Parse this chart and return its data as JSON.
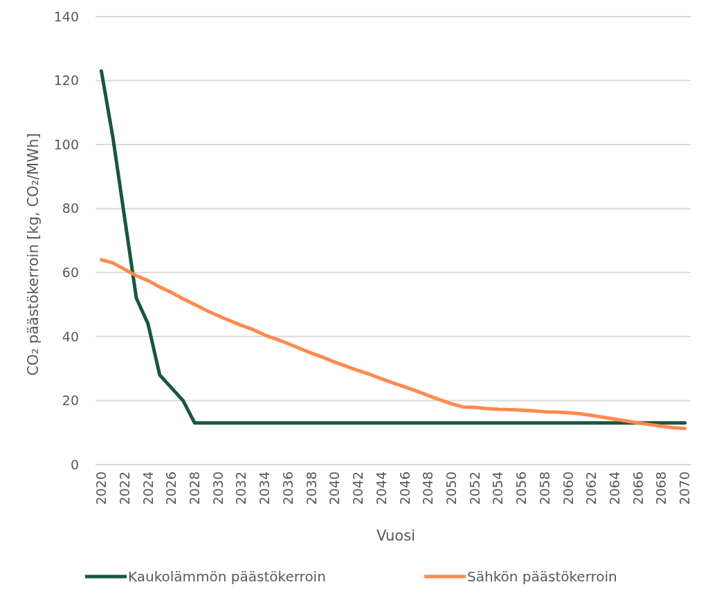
{
  "chart_data": {
    "type": "line",
    "xlabel": "Vuosi",
    "ylabel": "CO₂ päästökerroin [kg, CO₂/MWh]",
    "x": [
      2020,
      2021,
      2022,
      2023,
      2024,
      2025,
      2026,
      2027,
      2028,
      2029,
      2030,
      2031,
      2032,
      2033,
      2034,
      2035,
      2036,
      2037,
      2038,
      2039,
      2040,
      2041,
      2042,
      2043,
      2044,
      2045,
      2046,
      2047,
      2048,
      2049,
      2050,
      2051,
      2052,
      2053,
      2054,
      2055,
      2056,
      2057,
      2058,
      2059,
      2060,
      2061,
      2062,
      2063,
      2064,
      2065,
      2066,
      2067,
      2068,
      2069,
      2070
    ],
    "xlim": [
      2019.5,
      2070.5
    ],
    "xticks": [
      2020,
      2022,
      2024,
      2026,
      2028,
      2030,
      2032,
      2034,
      2036,
      2038,
      2040,
      2042,
      2044,
      2046,
      2048,
      2050,
      2052,
      2054,
      2056,
      2058,
      2060,
      2062,
      2064,
      2066,
      2068,
      2070
    ],
    "ylim": [
      0,
      140
    ],
    "yticks": [
      0,
      20,
      40,
      60,
      80,
      100,
      120,
      140
    ],
    "grid": "y",
    "legend": "bottom",
    "series": [
      {
        "name": "Kaukolämmön päästökerroin",
        "color": "#17573f",
        "values": [
          123,
          102,
          77,
          52,
          44,
          28,
          24,
          20,
          13,
          13,
          13,
          13,
          13,
          13,
          13,
          13,
          13,
          13,
          13,
          13,
          13,
          13,
          13,
          13,
          13,
          13,
          13,
          13,
          13,
          13,
          13,
          13,
          13,
          13,
          13,
          13,
          13,
          13,
          13,
          13,
          13,
          13,
          13,
          13,
          13,
          13,
          13,
          13,
          13,
          13,
          13
        ]
      },
      {
        "name": "Sähkön päästökerroin",
        "color": "#ff8a4f",
        "values": [
          64,
          63,
          61,
          59,
          57.5,
          55.5,
          53.8,
          51.8,
          50,
          48.2,
          46.5,
          45,
          43.5,
          42.2,
          40.5,
          39.2,
          37.8,
          36.3,
          34.8,
          33.5,
          32,
          30.7,
          29.4,
          28.2,
          26.8,
          25.5,
          24.3,
          23,
          21.6,
          20.3,
          19,
          18,
          17.9,
          17.5,
          17.3,
          17.2,
          17,
          16.8,
          16.5,
          16.4,
          16.2,
          15.9,
          15.4,
          14.8,
          14.2,
          13.6,
          13,
          12.5,
          12,
          11.5,
          11.3
        ]
      }
    ]
  }
}
